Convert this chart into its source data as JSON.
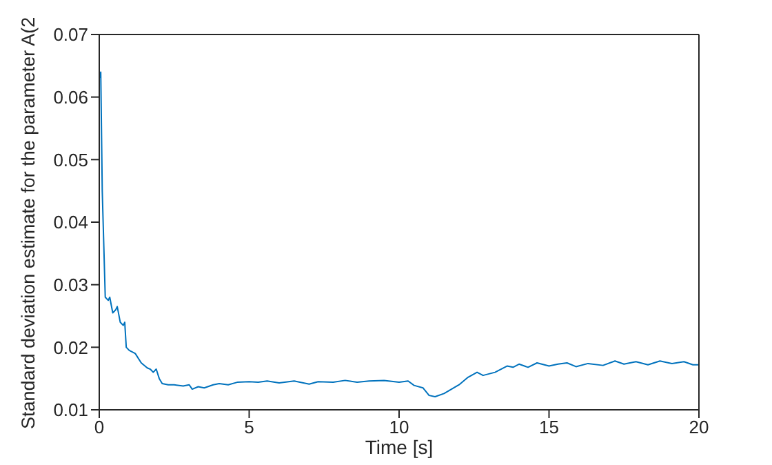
{
  "chart_data": {
    "type": "line",
    "xlabel": "Time [s]",
    "ylabel": "Standard deviation estimate for the parameter A(2",
    "xlim": [
      0,
      20
    ],
    "xticks": [
      0,
      5,
      10,
      15,
      20
    ],
    "ylim": [
      0.01,
      0.07
    ],
    "yticks": [
      0.01,
      0.02,
      0.03,
      0.04,
      0.05,
      0.06,
      0.07
    ],
    "grid": false,
    "legend": false,
    "marker": "none",
    "line_style": "solid",
    "series": [
      {
        "color": "#0072bd",
        "x": [
          0,
          0.05,
          0.1,
          0.2,
          0.3,
          0.35,
          0.45,
          0.55,
          0.6,
          0.7,
          0.8,
          0.85,
          0.9,
          1.0,
          1.2,
          1.4,
          1.6,
          1.7,
          1.8,
          1.9,
          2.0,
          2.1,
          2.3,
          2.5,
          2.8,
          3.0,
          3.1,
          3.3,
          3.5,
          3.8,
          4.0,
          4.3,
          4.6,
          5.0,
          5.3,
          5.6,
          6,
          6.5,
          7,
          7.3,
          7.8,
          8.2,
          8.6,
          9,
          9.5,
          10,
          10.3,
          10.5,
          10.8,
          11.0,
          11.2,
          11.5,
          12,
          12.3,
          12.6,
          12.8,
          13.2,
          13.6,
          13.8,
          14.0,
          14.3,
          14.6,
          15,
          15.3,
          15.6,
          15.9,
          16.3,
          16.8,
          17.2,
          17.5,
          17.9,
          18.3,
          18.7,
          19.1,
          19.5,
          19.8,
          20
        ],
        "values": [
          0.063,
          0.064,
          0.045,
          0.028,
          0.0275,
          0.028,
          0.0255,
          0.026,
          0.0265,
          0.024,
          0.0235,
          0.024,
          0.02,
          0.0195,
          0.019,
          0.0175,
          0.0167,
          0.0165,
          0.016,
          0.0165,
          0.015,
          0.0142,
          0.014,
          0.014,
          0.0138,
          0.014,
          0.0133,
          0.0137,
          0.0135,
          0.014,
          0.0142,
          0.014,
          0.0144,
          0.0145,
          0.0144,
          0.0146,
          0.0143,
          0.0146,
          0.0141,
          0.0145,
          0.0144,
          0.0147,
          0.0144,
          0.0146,
          0.0147,
          0.0144,
          0.0146,
          0.0139,
          0.0135,
          0.0123,
          0.0121,
          0.0126,
          0.014,
          0.0152,
          0.016,
          0.0155,
          0.016,
          0.017,
          0.0168,
          0.0173,
          0.0168,
          0.0175,
          0.017,
          0.0173,
          0.0175,
          0.0169,
          0.0174,
          0.0171,
          0.0178,
          0.0173,
          0.0177,
          0.0172,
          0.0178,
          0.0174,
          0.0177,
          0.0172,
          0.0172
        ]
      }
    ]
  }
}
